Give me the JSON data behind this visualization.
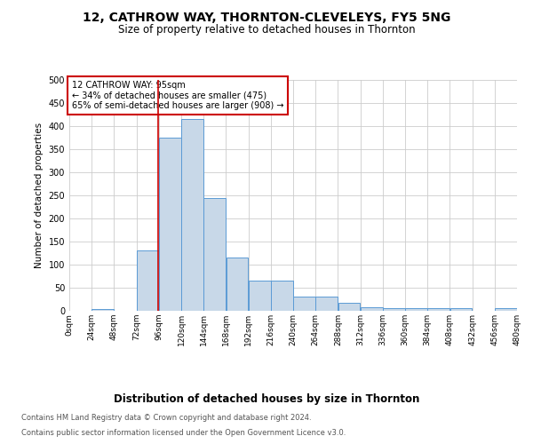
{
  "title_line1": "12, CATHROW WAY, THORNTON-CLEVELEYS, FY5 5NG",
  "title_line2": "Size of property relative to detached houses in Thornton",
  "xlabel": "Distribution of detached houses by size in Thornton",
  "ylabel": "Number of detached properties",
  "footnote1": "Contains HM Land Registry data © Crown copyright and database right 2024.",
  "footnote2": "Contains public sector information licensed under the Open Government Licence v3.0.",
  "annotation_line1": "12 CATHROW WAY: 95sqm",
  "annotation_line2": "← 34% of detached houses are smaller (475)",
  "annotation_line3": "65% of semi-detached houses are larger (908) →",
  "property_size": 95,
  "bin_width": 24,
  "bins": [
    0,
    24,
    48,
    72,
    96,
    120,
    144,
    168,
    192,
    216,
    240,
    264,
    288,
    312,
    336,
    360,
    384,
    408,
    432,
    456,
    480
  ],
  "bar_heights": [
    0,
    4,
    0,
    130,
    375,
    415,
    245,
    115,
    65,
    65,
    30,
    30,
    17,
    8,
    5,
    5,
    5,
    5,
    0,
    5,
    5
  ],
  "bar_facecolor": "#c8d8e8",
  "bar_edgecolor": "#5b9bd5",
  "marker_line_color": "#cc0000",
  "grid_color": "#cccccc",
  "background_color": "#ffffff",
  "ylim": [
    0,
    500
  ],
  "yticks": [
    0,
    50,
    100,
    150,
    200,
    250,
    300,
    350,
    400,
    450,
    500
  ]
}
